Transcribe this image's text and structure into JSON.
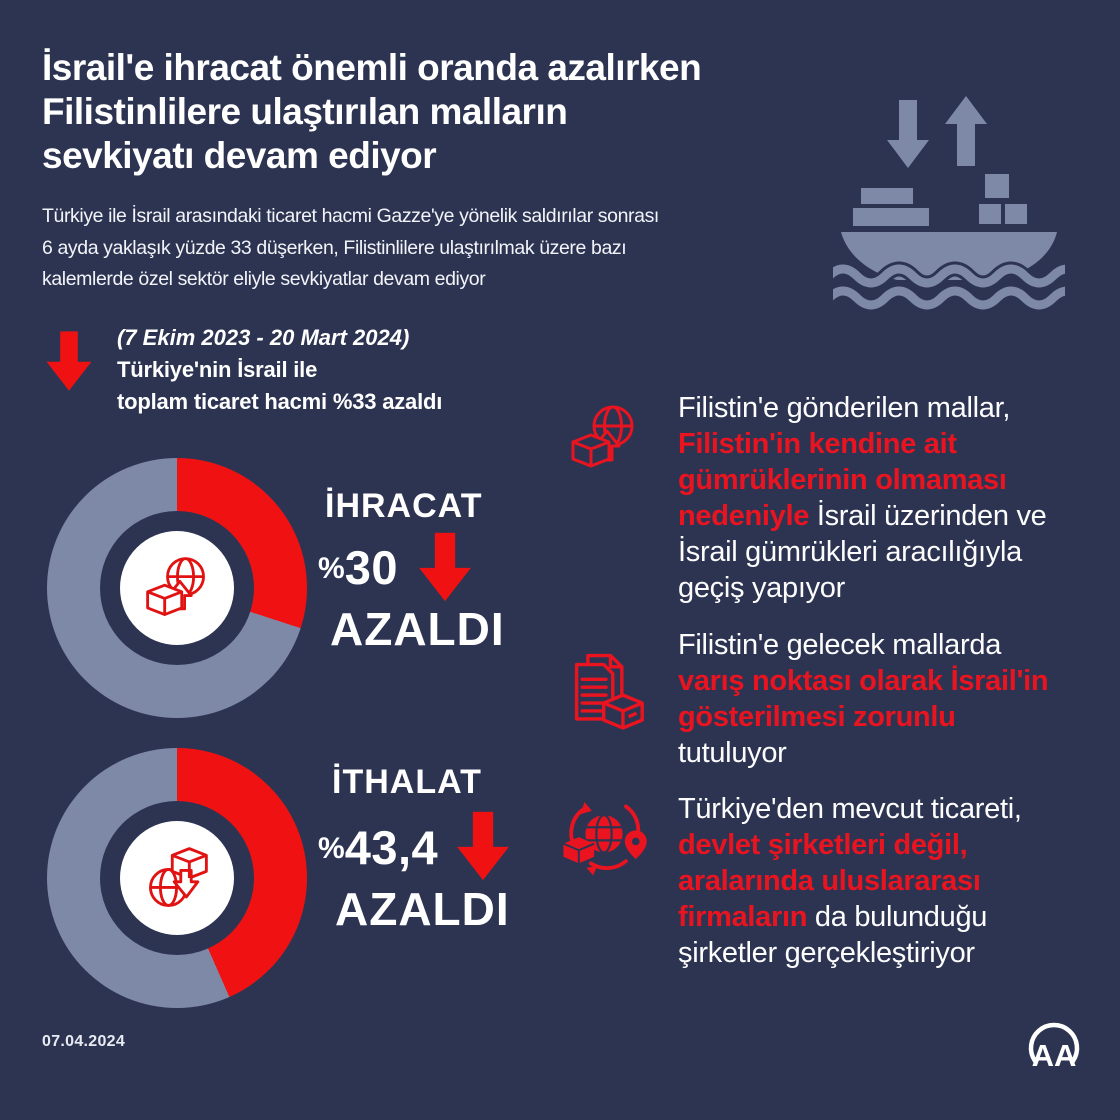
{
  "canvas": {
    "background": "#2d3452",
    "slate_color": "#7d89a7",
    "red_color": "#f01212",
    "red_text_color": "#e9141f"
  },
  "header": {
    "title_lines": [
      "İsrail'e ihracat önemli oranda azalırken",
      "Filistinlilere ulaştırılan malların",
      "sevkiyatı devam ediyor"
    ],
    "subtitle_lines": [
      "Türkiye ile İsrail arasındaki ticaret hacmi Gazze'ye yönelik saldırılar sonrası",
      "6 ayda yaklaşık yüzde 33 düşerken, Filistinlilere ulaştırılmak üzere bazı",
      "kalemlerde özel sektör eliyle sevkiyatlar devam ediyor"
    ],
    "ship_icon": "cargo-ship-up-down-arrows-icon"
  },
  "highlight": {
    "arrow_icon": "red-down-arrow-icon",
    "period": "(7 Ekim 2023 - 20 Mart 2024)",
    "line1": "Türkiye'nin İsrail ile",
    "line2": "toplam ticaret hacmi %33 azaldı",
    "total_trade_decrease_percent": 33
  },
  "stats": [
    {
      "label": "İHRACAT",
      "sign": "%",
      "value": "30",
      "action": "AZALDI",
      "icon": "export-globe-box-up-arrow-icon",
      "arrow_icon": "red-down-arrow-icon"
    },
    {
      "label": "İTHALAT",
      "sign": "%",
      "value": "43,4",
      "action": "AZALDI",
      "icon": "import-globe-box-down-arrow-icon",
      "arrow_icon": "red-down-arrow-icon"
    }
  ],
  "chart_data": [
    {
      "type": "pie",
      "donut": true,
      "title": "İHRACAT %30 AZALDI",
      "slices": [
        {
          "label": "azalış",
          "value": 30,
          "color": "#f01212"
        },
        {
          "label": "kalan",
          "value": 70,
          "color": "#7d89a7"
        }
      ],
      "start_angle_deg": 0,
      "direction": "clockwise",
      "center_icon": "export-globe-box-up-arrow-icon"
    },
    {
      "type": "pie",
      "donut": true,
      "title": "İTHALAT %43,4 AZALDI",
      "slices": [
        {
          "label": "azalış",
          "value": 43.4,
          "color": "#f01212"
        },
        {
          "label": "kalan",
          "value": 56.6,
          "color": "#7d89a7"
        }
      ],
      "start_angle_deg": 0,
      "direction": "clockwise",
      "center_icon": "import-globe-box-down-arrow-icon"
    }
  ],
  "facts": [
    {
      "icon": "export-globe-box-up-arrow-icon",
      "lines": [
        [
          {
            "text": "Filistin'e gönderilen mallar,",
            "red": false
          }
        ],
        [
          {
            "text": "Filistin'in kendine ait",
            "red": true
          }
        ],
        [
          {
            "text": "gümrüklerinin olmaması",
            "red": true
          }
        ],
        [
          {
            "text": "nedeniyle ",
            "red": true
          },
          {
            "text": "İsrail üzerinden ve",
            "red": false
          }
        ],
        [
          {
            "text": "İsrail gümrükleri aracılığıyla",
            "red": false
          }
        ],
        [
          {
            "text": "geçiş yapıyor",
            "red": false
          }
        ]
      ]
    },
    {
      "icon": "documents-and-box-icon",
      "lines": [
        [
          {
            "text": "Filistin'e gelecek mallarda",
            "red": false
          }
        ],
        [
          {
            "text": "varış noktası olarak İsrail'in",
            "red": true
          }
        ],
        [
          {
            "text": "gösterilmesi zorunlu",
            "red": true
          }
        ],
        [
          {
            "text": "tutuluyor",
            "red": false
          }
        ]
      ]
    },
    {
      "icon": "global-distribution-globe-box-pin-icon",
      "lines": [
        [
          {
            "text": "Türkiye'den mevcut ticareti,",
            "red": false
          }
        ],
        [
          {
            "text": "devlet şirketleri değil,",
            "red": true
          }
        ],
        [
          {
            "text": "aralarında uluslararası",
            "red": true
          }
        ],
        [
          {
            "text": "firmaların ",
            "red": true
          },
          {
            "text": "da bulunduğu",
            "red": false
          }
        ],
        [
          {
            "text": "şirketler gerçekleştiriyor",
            "red": false
          }
        ]
      ]
    }
  ],
  "footer": {
    "date": "07.04.2024",
    "logo_text": "AA",
    "logo": "anadolu-agency-logo"
  }
}
